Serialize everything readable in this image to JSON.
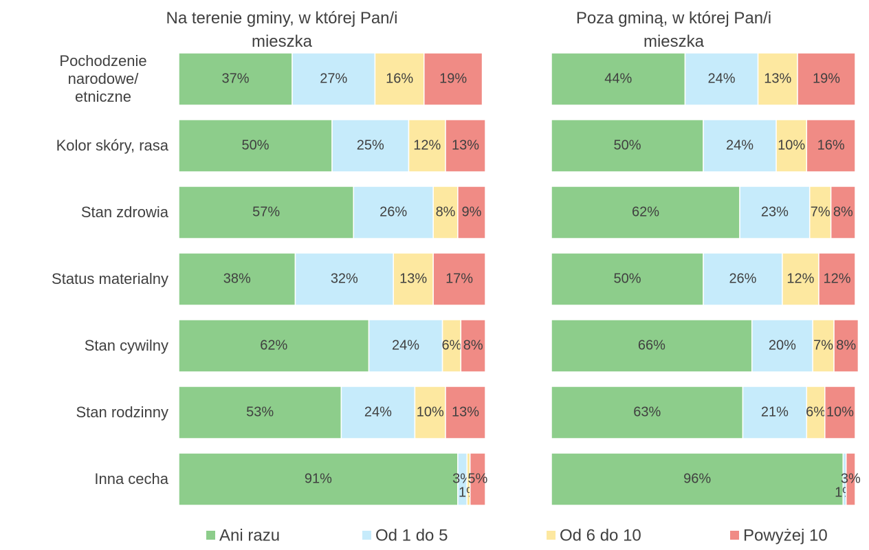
{
  "chart_data": [
    {
      "type": "stacked-bar-horizontal",
      "title": "Na terenie gminy, w której Pan/i mieszka",
      "categories": [
        "Pochodzenie narodowe/ etniczne",
        "Kolor skóry, rasa",
        "Stan zdrowia",
        "Status materialny",
        "Stan cywilny",
        "Stan rodzinny",
        "Inna cecha"
      ],
      "xlim": [
        0,
        100
      ],
      "series": [
        {
          "name": "Ani razu",
          "color": "#8dcd8b",
          "values": [
            37,
            50,
            57,
            38,
            62,
            53,
            91
          ],
          "value_labels": [
            "37%",
            "50%",
            "57%",
            "38%",
            "62%",
            "53%",
            "91%"
          ]
        },
        {
          "name": "Od 1 do 5",
          "color": "#c6ebfb",
          "values": [
            27,
            25,
            26,
            32,
            24,
            24,
            3
          ],
          "value_labels": [
            "27%",
            "25%",
            "26%",
            "32%",
            "24%",
            "24%",
            "3%"
          ]
        },
        {
          "name": "Od 6 do 10",
          "color": "#fde8a0",
          "values": [
            16,
            12,
            8,
            13,
            6,
            10,
            1
          ],
          "value_labels": [
            "16%",
            "12%",
            "8%",
            "13%",
            "6%",
            "10%",
            "1%"
          ]
        },
        {
          "name": "Powyżej 10",
          "color": "#f08b85",
          "values": [
            19,
            13,
            9,
            17,
            8,
            13,
            5
          ],
          "value_labels": [
            "19%",
            "13%",
            "9%",
            "17%",
            "8%",
            "13%",
            "5%"
          ]
        }
      ]
    },
    {
      "type": "stacked-bar-horizontal",
      "title": "Poza gminą, w której Pan/i mieszka",
      "xlim": [
        0,
        100
      ],
      "series": [
        {
          "color": "#8dcd8b",
          "values": [
            44,
            50,
            62,
            50,
            66,
            63,
            96
          ],
          "value_labels": [
            "44%",
            "50%",
            "62%",
            "50%",
            "66%",
            "63%",
            "96%"
          ]
        },
        {
          "color": "#c6ebfb",
          "values": [
            24,
            24,
            23,
            26,
            20,
            21,
            1
          ],
          "value_labels": [
            "24%",
            "24%",
            "23%",
            "26%",
            "20%",
            "21%",
            "1%"
          ]
        },
        {
          "color": "#fde8a0",
          "values": [
            13,
            10,
            7,
            12,
            7,
            6,
            0
          ],
          "value_labels": [
            "13%",
            "10%",
            "7%",
            "12%",
            "7%",
            "6%",
            null
          ]
        },
        {
          "color": "#f08b85",
          "values": [
            19,
            16,
            8,
            12,
            8,
            10,
            3
          ],
          "value_labels": [
            "19%",
            "16%",
            "8%",
            "12%",
            "8%",
            "10%",
            "3%"
          ]
        }
      ]
    }
  ]
}
